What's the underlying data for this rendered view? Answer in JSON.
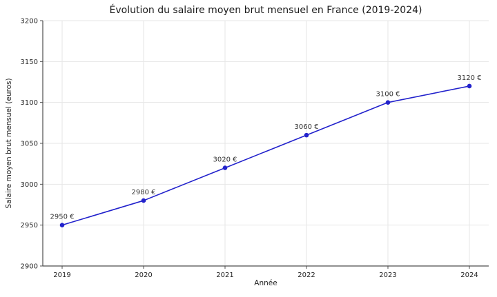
{
  "chart_data": {
    "type": "line",
    "title": "Évolution du salaire moyen brut mensuel en France (2019-2024)",
    "xlabel": "Année",
    "ylabel": "Salaire moyen brut mensuel (euros)",
    "categories": [
      "2019",
      "2020",
      "2021",
      "2022",
      "2023",
      "2024"
    ],
    "values": [
      2950,
      2980,
      3020,
      3060,
      3100,
      3120
    ],
    "point_labels": [
      "2950 €",
      "2980 €",
      "3020 €",
      "3060 €",
      "3100 €",
      "3120 €"
    ],
    "ylim": [
      2900,
      3200
    ],
    "yticks": [
      2900,
      2950,
      3000,
      3050,
      3100,
      3150,
      3200
    ],
    "grid": true,
    "legend": "none",
    "line_color": "#2222cc",
    "marker_color": "#2222cc",
    "grid_color": "#e6e6e6",
    "axis_color": "#4d4d4d",
    "tick_text_color": "#262626",
    "annotation_color": "#333333"
  }
}
